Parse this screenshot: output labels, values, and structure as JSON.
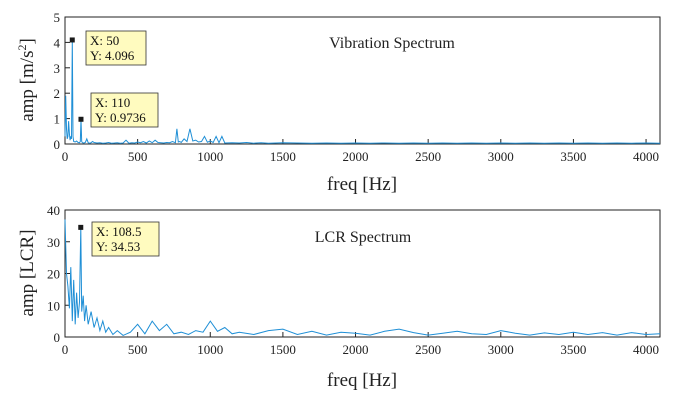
{
  "chart_data": [
    {
      "type": "line",
      "title": "Vibration Spectrum",
      "xlabel": "freq [Hz]",
      "ylabel": "amp [m/s²]",
      "ylabel_main": "amp [m/s",
      "ylabel_sup": "2",
      "ylabel_end": "]",
      "xlim": [
        0,
        4096
      ],
      "ylim": [
        0,
        5
      ],
      "x_ticks": [
        "0",
        "500",
        "1000",
        "1500",
        "2000",
        "2500",
        "3000",
        "3500",
        "4000"
      ],
      "y_ticks": [
        "0",
        "1",
        "2",
        "3",
        "4",
        "5"
      ],
      "grid": false,
      "line_color": "#1f8fd6",
      "series": [
        {
          "x": [
            0,
            5,
            10,
            15,
            20,
            25,
            30,
            35,
            40,
            45,
            50,
            55,
            60,
            70,
            80,
            90,
            100,
            105,
            110,
            115,
            120,
            130,
            140,
            150,
            160,
            170,
            180,
            190,
            200,
            220,
            240,
            260,
            280,
            300,
            320,
            340,
            360,
            380,
            400,
            420,
            440,
            460,
            480,
            500,
            520,
            540,
            560,
            580,
            600,
            620,
            640,
            660,
            680,
            700,
            720,
            740,
            760,
            770,
            780,
            790,
            800,
            820,
            840,
            860,
            880,
            900,
            920,
            940,
            960,
            980,
            1000,
            1020,
            1040,
            1060,
            1080,
            1100,
            1150,
            1200,
            1250,
            1300,
            1350,
            1400,
            1450,
            1500,
            1600,
            1700,
            1800,
            1900,
            2000,
            2100,
            2200,
            2300,
            2400,
            2500,
            2600,
            2700,
            2800,
            2900,
            3000,
            3100,
            3200,
            3300,
            3400,
            3500,
            3600,
            3700,
            3800,
            3900,
            4000,
            4096
          ],
          "y": [
            0.3,
            1.9,
            0.6,
            0.2,
            0.3,
            0.9,
            0.4,
            0.15,
            0.3,
            0.2,
            4.096,
            0.3,
            0.1,
            0.08,
            0.12,
            0.06,
            0.05,
            0.1,
            0.9736,
            0.1,
            0.05,
            0.04,
            0.06,
            0.2,
            0.05,
            0.03,
            0.05,
            0.1,
            0.06,
            0.04,
            0.05,
            0.03,
            0.04,
            0.06,
            0.03,
            0.04,
            0.05,
            0.03,
            0.04,
            0.15,
            0.03,
            0.05,
            0.04,
            0.08,
            0.05,
            0.1,
            0.04,
            0.12,
            0.05,
            0.15,
            0.06,
            0.05,
            0.04,
            0.06,
            0.05,
            0.1,
            0.05,
            0.6,
            0.08,
            0.1,
            0.06,
            0.2,
            0.1,
            0.6,
            0.12,
            0.15,
            0.08,
            0.1,
            0.3,
            0.07,
            0.12,
            0.06,
            0.3,
            0.05,
            0.3,
            0.04,
            0.05,
            0.04,
            0.06,
            0.03,
            0.05,
            0.03,
            0.04,
            0.05,
            0.04,
            0.03,
            0.04,
            0.03,
            0.04,
            0.03,
            0.04,
            0.03,
            0.04,
            0.03,
            0.04,
            0.03,
            0.04,
            0.03,
            0.04,
            0.03,
            0.04,
            0.03,
            0.04,
            0.03,
            0.04,
            0.03,
            0.04,
            0.03,
            0.04,
            0.03
          ]
        }
      ],
      "datatips": [
        {
          "x": 50,
          "y": 4.096,
          "line1": "X: 50",
          "line2": "Y: 4.096"
        },
        {
          "x": 110,
          "y": 0.9736,
          "line1": "X: 110",
          "line2": "Y: 0.9736"
        }
      ]
    },
    {
      "type": "line",
      "title": "LCR Spectrum",
      "xlabel": "freq [Hz]",
      "ylabel": "amp [LCR]",
      "xlim": [
        0,
        4096
      ],
      "ylim": [
        0,
        40
      ],
      "x_ticks": [
        "0",
        "500",
        "1000",
        "1500",
        "2000",
        "2500",
        "3000",
        "3500",
        "4000"
      ],
      "y_ticks": [
        "0",
        "10",
        "20",
        "30",
        "40"
      ],
      "grid": false,
      "line_color": "#1f8fd6",
      "series": [
        {
          "x": [
            0,
            10,
            20,
            30,
            40,
            50,
            60,
            70,
            80,
            90,
            100,
            108.5,
            115,
            125,
            135,
            145,
            160,
            180,
            200,
            220,
            240,
            260,
            280,
            300,
            330,
            360,
            400,
            450,
            500,
            550,
            600,
            650,
            700,
            750,
            800,
            850,
            900,
            950,
            1000,
            1050,
            1100,
            1150,
            1200,
            1300,
            1400,
            1500,
            1600,
            1700,
            1800,
            1900,
            2000,
            2100,
            2200,
            2300,
            2400,
            2500,
            2600,
            2700,
            2800,
            2900,
            3000,
            3100,
            3200,
            3300,
            3400,
            3500,
            3600,
            3700,
            3800,
            3900,
            4000,
            4096
          ],
          "y": [
            37,
            20,
            16,
            9,
            22,
            5,
            18,
            4,
            14,
            6,
            11,
            34.53,
            8,
            13,
            5,
            10,
            4,
            8,
            3,
            6,
            2,
            5,
            1.5,
            3,
            0.8,
            2,
            0.5,
            1.5,
            4,
            1,
            5,
            2,
            4,
            1,
            1.5,
            0.8,
            2,
            1.5,
            5,
            1.8,
            3,
            1,
            1.5,
            0.8,
            2,
            2.5,
            0.8,
            1.8,
            0.6,
            1.5,
            1.2,
            0.6,
            1.8,
            2.5,
            1.4,
            0.6,
            1.2,
            1.8,
            1,
            0.8,
            2,
            1.2,
            0.6,
            1.3,
            0.8,
            1.5,
            0.8,
            1.4,
            0.6,
            1.4,
            0.8,
            1
          ]
        }
      ],
      "datatips": [
        {
          "x": 108.5,
          "y": 34.53,
          "line1": "X: 108.5",
          "line2": "Y: 34.53"
        }
      ]
    }
  ]
}
